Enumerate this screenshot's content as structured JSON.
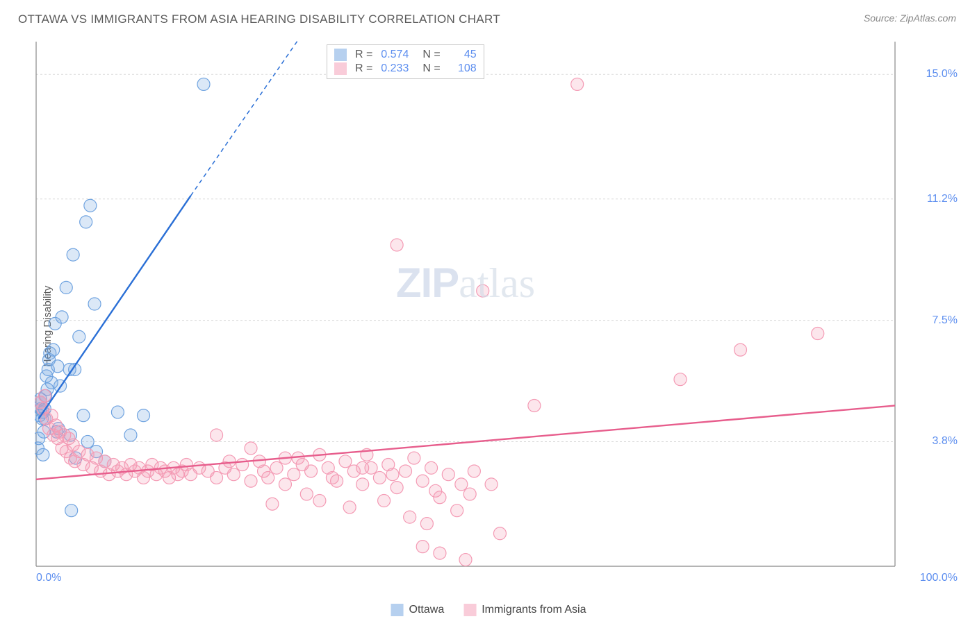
{
  "title": "OTTAWA VS IMMIGRANTS FROM ASIA HEARING DISABILITY CORRELATION CHART",
  "source": "Source: ZipAtlas.com",
  "ylabel": "Hearing Disability",
  "watermark": {
    "bold": "ZIP",
    "light": "atlas"
  },
  "chart": {
    "type": "scatter",
    "background_color": "#ffffff",
    "grid_color": "#d8d8d8",
    "axis_color": "#888888",
    "xlim": [
      0,
      100
    ],
    "ylim": [
      0,
      16
    ],
    "xticks": [
      {
        "v": 0,
        "label": "0.0%"
      },
      {
        "v": 100,
        "label": "100.0%"
      }
    ],
    "yticks": [
      {
        "v": 3.8,
        "label": "3.8%"
      },
      {
        "v": 7.5,
        "label": "7.5%"
      },
      {
        "v": 11.2,
        "label": "11.2%"
      },
      {
        "v": 15.0,
        "label": "15.0%"
      }
    ],
    "marker_radius": 9,
    "marker_fill_opacity": 0.25,
    "marker_stroke_width": 1.2,
    "trend_line_width": 2.4,
    "series": [
      {
        "name": "Ottawa",
        "color": "#6fa3e0",
        "line_color": "#2a6fd6",
        "R": "0.574",
        "N": "45",
        "trend": {
          "x1": 0.3,
          "y1": 4.5,
          "x2": 18,
          "y2": 11.3,
          "dash_x2": 33,
          "dash_y2": 17
        },
        "points": [
          [
            0.2,
            3.6
          ],
          [
            0.3,
            3.9
          ],
          [
            0.4,
            4.6
          ],
          [
            0.5,
            4.8
          ],
          [
            0.5,
            5.1
          ],
          [
            0.5,
            5.0
          ],
          [
            0.7,
            4.5
          ],
          [
            0.8,
            3.4
          ],
          [
            0.8,
            4.7
          ],
          [
            0.9,
            4.1
          ],
          [
            1.0,
            4.5
          ],
          [
            1.0,
            4.8
          ],
          [
            1.1,
            5.2
          ],
          [
            1.2,
            5.8
          ],
          [
            1.3,
            5.4
          ],
          [
            1.4,
            6.0
          ],
          [
            1.5,
            6.3
          ],
          [
            1.6,
            6.5
          ],
          [
            1.8,
            5.6
          ],
          [
            2.0,
            6.6
          ],
          [
            2.2,
            7.4
          ],
          [
            2.4,
            4.1
          ],
          [
            2.5,
            6.1
          ],
          [
            2.6,
            4.2
          ],
          [
            2.8,
            5.5
          ],
          [
            3.0,
            7.6
          ],
          [
            3.5,
            8.5
          ],
          [
            3.9,
            6.0
          ],
          [
            4.0,
            4.0
          ],
          [
            4.3,
            9.5
          ],
          [
            4.5,
            6.0
          ],
          [
            4.6,
            3.3
          ],
          [
            5.0,
            7.0
          ],
          [
            5.5,
            4.6
          ],
          [
            5.8,
            10.5
          ],
          [
            6.0,
            3.8
          ],
          [
            6.3,
            11.0
          ],
          [
            6.8,
            8.0
          ],
          [
            7.0,
            3.5
          ],
          [
            4.1,
            1.7
          ],
          [
            8.0,
            3.2
          ],
          [
            9.5,
            4.7
          ],
          [
            11.0,
            4.0
          ],
          [
            12.5,
            4.6
          ],
          [
            19.5,
            14.7
          ]
        ]
      },
      {
        "name": "Immigrants from Asia",
        "color": "#f49ab4",
        "line_color": "#e75d8c",
        "R": "0.233",
        "N": "108",
        "trend": {
          "x1": 0,
          "y1": 2.65,
          "x2": 100,
          "y2": 4.9
        },
        "points": [
          [
            0.5,
            5.0
          ],
          [
            0.8,
            4.8
          ],
          [
            1.0,
            5.2
          ],
          [
            1.2,
            4.5
          ],
          [
            1.5,
            4.2
          ],
          [
            1.8,
            4.6
          ],
          [
            2.0,
            4.0
          ],
          [
            2.3,
            4.3
          ],
          [
            2.5,
            3.9
          ],
          [
            2.8,
            4.1
          ],
          [
            3.0,
            3.6
          ],
          [
            3.3,
            4.0
          ],
          [
            3.5,
            3.5
          ],
          [
            3.8,
            3.9
          ],
          [
            4.0,
            3.3
          ],
          [
            4.3,
            3.7
          ],
          [
            4.5,
            3.2
          ],
          [
            5.0,
            3.5
          ],
          [
            5.5,
            3.1
          ],
          [
            6.0,
            3.4
          ],
          [
            6.5,
            3.0
          ],
          [
            7.0,
            3.3
          ],
          [
            7.5,
            2.9
          ],
          [
            8.0,
            3.2
          ],
          [
            8.5,
            2.8
          ],
          [
            9.0,
            3.1
          ],
          [
            9.5,
            2.9
          ],
          [
            10.0,
            3.0
          ],
          [
            10.5,
            2.8
          ],
          [
            11.0,
            3.1
          ],
          [
            11.5,
            2.9
          ],
          [
            12.0,
            3.0
          ],
          [
            12.5,
            2.7
          ],
          [
            13.0,
            2.9
          ],
          [
            13.5,
            3.1
          ],
          [
            14.0,
            2.8
          ],
          [
            14.5,
            3.0
          ],
          [
            15.0,
            2.9
          ],
          [
            15.5,
            2.7
          ],
          [
            16.0,
            3.0
          ],
          [
            16.5,
            2.8
          ],
          [
            17.0,
            2.9
          ],
          [
            17.5,
            3.1
          ],
          [
            18.0,
            2.8
          ],
          [
            19.0,
            3.0
          ],
          [
            20.0,
            2.9
          ],
          [
            21.0,
            4.0
          ],
          [
            21.0,
            2.7
          ],
          [
            22.0,
            3.0
          ],
          [
            23.0,
            2.8
          ],
          [
            24.0,
            3.1
          ],
          [
            25.0,
            3.6
          ],
          [
            25.0,
            2.6
          ],
          [
            26.0,
            3.2
          ],
          [
            27.0,
            2.7
          ],
          [
            27.5,
            1.9
          ],
          [
            28.0,
            3.0
          ],
          [
            29.0,
            2.5
          ],
          [
            29.0,
            3.3
          ],
          [
            30.0,
            2.8
          ],
          [
            31.0,
            3.1
          ],
          [
            31.5,
            2.2
          ],
          [
            32.0,
            2.9
          ],
          [
            33.0,
            3.4
          ],
          [
            33.0,
            2.0
          ],
          [
            34.0,
            3.0
          ],
          [
            35.0,
            2.6
          ],
          [
            36.0,
            3.2
          ],
          [
            36.5,
            1.8
          ],
          [
            37.0,
            2.9
          ],
          [
            38.0,
            2.5
          ],
          [
            38.5,
            3.4
          ],
          [
            39.0,
            3.0
          ],
          [
            40.0,
            2.7
          ],
          [
            40.5,
            2.0
          ],
          [
            41.0,
            3.1
          ],
          [
            42.0,
            2.4
          ],
          [
            42.0,
            9.8
          ],
          [
            43.0,
            2.9
          ],
          [
            43.5,
            1.5
          ],
          [
            44.0,
            3.3
          ],
          [
            45.0,
            2.6
          ],
          [
            45.0,
            0.6
          ],
          [
            45.5,
            1.3
          ],
          [
            46.0,
            3.0
          ],
          [
            47.0,
            2.1
          ],
          [
            47.0,
            0.4
          ],
          [
            48.0,
            2.8
          ],
          [
            49.0,
            1.7
          ],
          [
            49.5,
            2.5
          ],
          [
            50.0,
            0.2
          ],
          [
            50.5,
            2.2
          ],
          [
            51.0,
            2.9
          ],
          [
            52.0,
            8.4
          ],
          [
            53.0,
            2.5
          ],
          [
            54.0,
            1.0
          ],
          [
            58.0,
            4.9
          ],
          [
            63.0,
            14.7
          ],
          [
            75.0,
            5.7
          ],
          [
            82.0,
            6.6
          ],
          [
            91.0,
            7.1
          ],
          [
            22.5,
            3.2
          ],
          [
            26.5,
            2.9
          ],
          [
            30.5,
            3.3
          ],
          [
            34.5,
            2.7
          ],
          [
            38.0,
            3.0
          ],
          [
            41.5,
            2.8
          ],
          [
            46.5,
            2.3
          ]
        ]
      }
    ]
  },
  "legend": {
    "items": [
      "Ottawa",
      "Immigrants from Asia"
    ]
  }
}
